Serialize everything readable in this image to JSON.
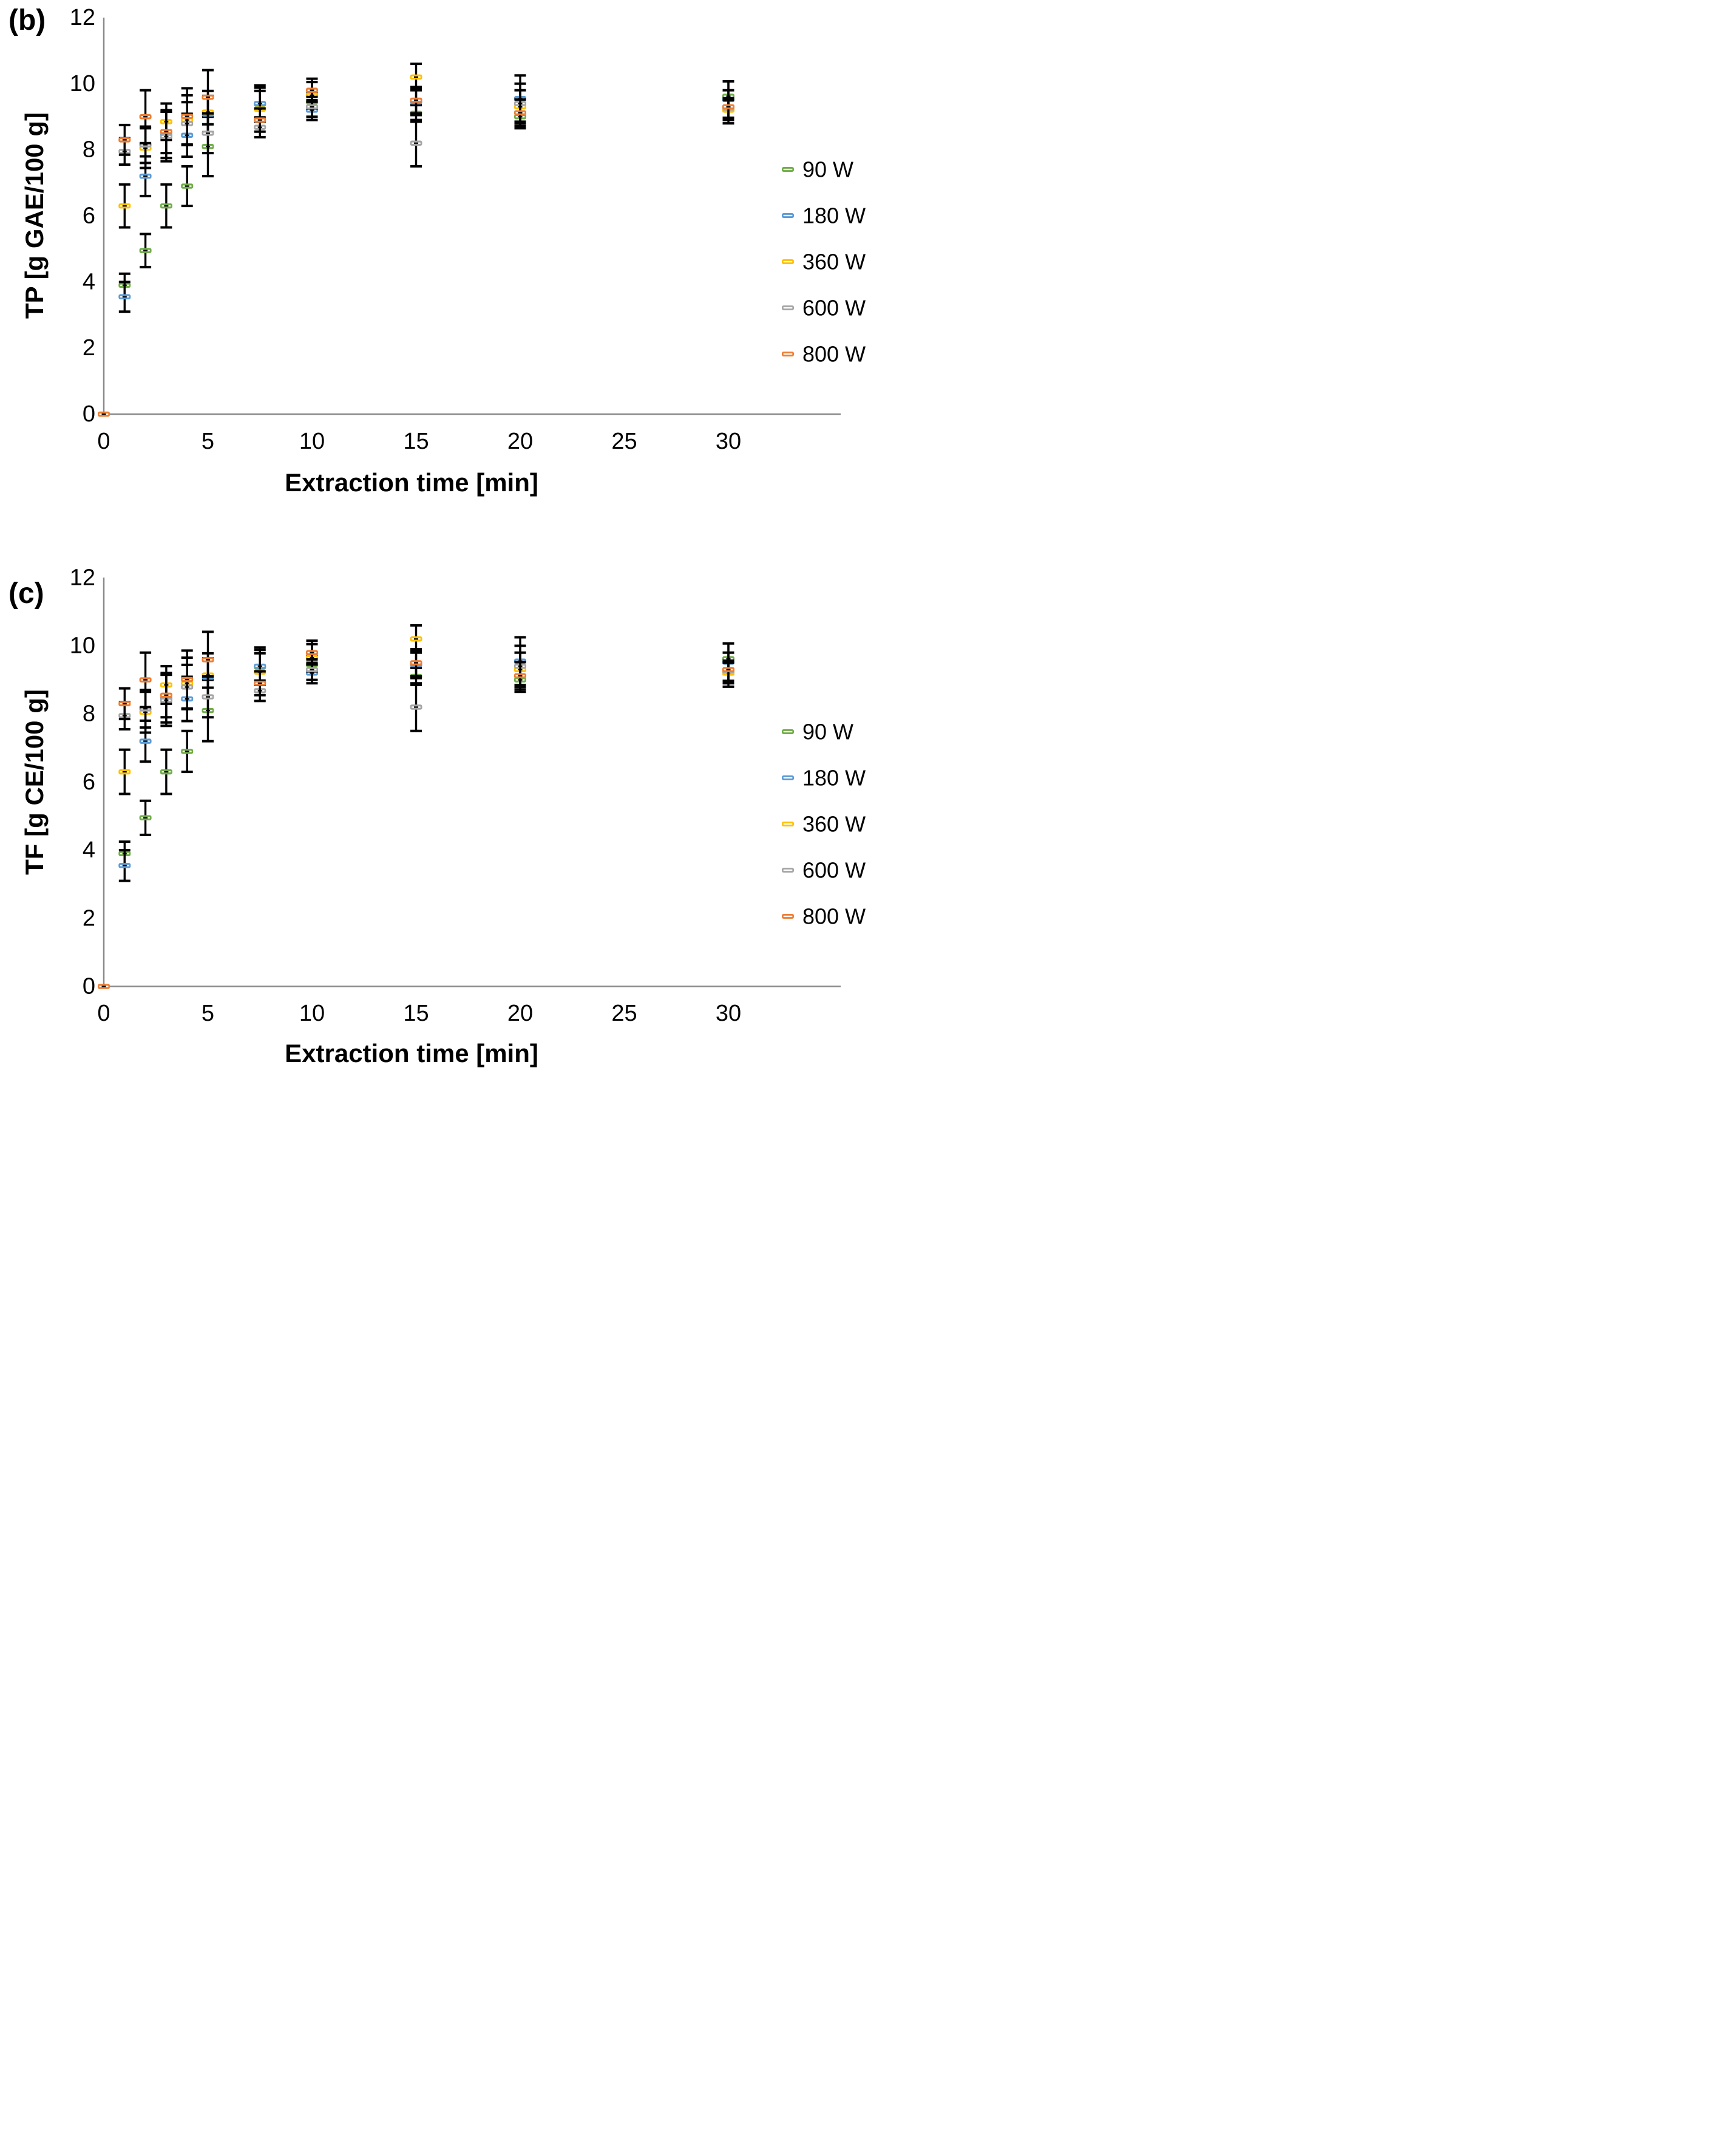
{
  "figure": {
    "background": "#ffffff",
    "text_color": "#000000",
    "axis_color": "#8a8a8a",
    "error_bar_color": "#000000"
  },
  "chart_data": [
    {
      "type": "scatter",
      "panel_label": "(b)",
      "ylabel": "TP [g GAE/100 g]",
      "xlabel": "Extraction time [min]",
      "x_ticks": [
        0,
        5,
        10,
        15,
        20,
        25,
        30
      ],
      "y_ticks": [
        0,
        2,
        4,
        6,
        8,
        10,
        12
      ],
      "xlim": [
        0,
        30
      ],
      "ylim": [
        0,
        12
      ],
      "grid": false,
      "legend_position": "right",
      "origin_point": {
        "series": "800 W",
        "x": 0,
        "y": 0
      },
      "x": [
        1,
        2,
        3,
        4,
        5,
        7.5,
        10,
        15,
        20,
        30
      ],
      "series": [
        {
          "name": "90 W",
          "color": "#70AD47",
          "values": [
            3.9,
            4.95,
            6.3,
            6.9,
            8.1,
            9.38,
            9.45,
            9.1,
            9.0,
            9.62
          ],
          "errors": [
            0.35,
            0.5,
            0.65,
            0.6,
            0.9,
            0.5,
            0.25,
            0.25,
            0.35,
            0.45
          ]
        },
        {
          "name": "180 W",
          "color": "#5B9BD5",
          "values": [
            3.55,
            7.2,
            8.45,
            8.44,
            9.08,
            9.4,
            9.2,
            9.45,
            9.55,
            9.52
          ],
          "errors": [
            0.45,
            0.6,
            0.7,
            0.65,
            0.55,
            0.55,
            0.3,
            0.4,
            0.7,
            0.55
          ]
        },
        {
          "name": "360 W",
          "color": "#FFC000",
          "values": [
            6.3,
            8.05,
            8.85,
            8.9,
            9.14,
            9.23,
            9.65,
            10.2,
            9.3,
            9.2
          ],
          "errors": [
            0.65,
            0.6,
            0.55,
            0.75,
            0.64,
            0.55,
            0.4,
            0.4,
            0.5,
            0.3
          ]
        },
        {
          "name": "600 W",
          "color": "#A5A5A5",
          "values": [
            7.95,
            8.15,
            8.4,
            8.79,
            8.5,
            8.68,
            9.3,
            8.2,
            9.4,
            9.26
          ],
          "errors": [
            0.4,
            0.55,
            0.75,
            0.65,
            0.6,
            0.3,
            0.3,
            0.7,
            0.6,
            0.3
          ]
        },
        {
          "name": "800 W",
          "color": "#ED7D31",
          "values": [
            8.3,
            9.0,
            8.55,
            9.01,
            9.59,
            8.9,
            9.8,
            9.5,
            9.12,
            9.3
          ],
          "errors": [
            0.45,
            0.8,
            0.65,
            0.85,
            0.82,
            0.35,
            0.35,
            0.4,
            0.4,
            0.5
          ]
        }
      ]
    },
    {
      "type": "scatter",
      "panel_label": "(c)",
      "ylabel": "TF [g CE/100 g]",
      "xlabel": "Extraction time [min]",
      "x_ticks": [
        0,
        5,
        10,
        15,
        20,
        25,
        30
      ],
      "y_ticks": [
        0,
        2,
        4,
        6,
        8,
        10,
        12
      ],
      "xlim": [
        0,
        30
      ],
      "ylim": [
        0,
        12
      ],
      "grid": false,
      "legend_position": "right",
      "origin_point": {
        "series": "800 W",
        "x": 0,
        "y": 0
      },
      "x": [
        1,
        2,
        3,
        4,
        5,
        7.5,
        10,
        15,
        20,
        30
      ],
      "series": [
        {
          "name": "90 W",
          "color": "#70AD47",
          "values": [
            3.9,
            4.95,
            6.3,
            6.9,
            8.1,
            9.38,
            9.45,
            9.1,
            9.0,
            9.62
          ],
          "errors": [
            0.35,
            0.5,
            0.65,
            0.6,
            0.9,
            0.5,
            0.25,
            0.25,
            0.35,
            0.45
          ]
        },
        {
          "name": "180 W",
          "color": "#5B9BD5",
          "values": [
            3.55,
            7.2,
            8.45,
            8.44,
            9.08,
            9.4,
            9.2,
            9.45,
            9.55,
            9.52
          ],
          "errors": [
            0.45,
            0.6,
            0.7,
            0.65,
            0.55,
            0.55,
            0.3,
            0.4,
            0.7,
            0.55
          ]
        },
        {
          "name": "360 W",
          "color": "#FFC000",
          "values": [
            6.3,
            8.05,
            8.85,
            8.9,
            9.14,
            9.23,
            9.65,
            10.2,
            9.3,
            9.2
          ],
          "errors": [
            0.65,
            0.6,
            0.55,
            0.75,
            0.64,
            0.55,
            0.4,
            0.4,
            0.5,
            0.3
          ]
        },
        {
          "name": "600 W",
          "color": "#A5A5A5",
          "values": [
            7.95,
            8.15,
            8.4,
            8.79,
            8.5,
            8.68,
            9.3,
            8.2,
            9.4,
            9.26
          ],
          "errors": [
            0.4,
            0.55,
            0.75,
            0.65,
            0.6,
            0.3,
            0.3,
            0.7,
            0.6,
            0.3
          ]
        },
        {
          "name": "800 W",
          "color": "#ED7D31",
          "values": [
            8.3,
            9.0,
            8.55,
            9.01,
            9.59,
            8.9,
            9.8,
            9.5,
            9.12,
            9.3
          ],
          "errors": [
            0.45,
            0.8,
            0.65,
            0.85,
            0.82,
            0.35,
            0.35,
            0.4,
            0.4,
            0.5
          ]
        }
      ]
    }
  ]
}
